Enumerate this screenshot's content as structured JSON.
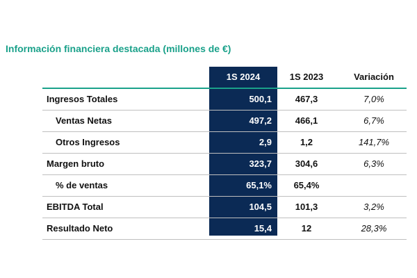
{
  "title": "Información financiera destacada (millones de €)",
  "table": {
    "headers": {
      "col_2024": "1S 2024",
      "col_2023": "1S 2023",
      "col_var": "Variación"
    },
    "rows": [
      {
        "label": "Ingresos Totales",
        "v2024": "500,1",
        "v2023": "467,3",
        "var": "7,0%"
      },
      {
        "label": "Ventas Netas",
        "v2024": "497,2",
        "v2023": "466,1",
        "var": "6,7%"
      },
      {
        "label": "Otros Ingresos",
        "v2024": "2,9",
        "v2023": "1,2",
        "var": "141,7%"
      },
      {
        "label": "Margen bruto",
        "v2024": "323,7",
        "v2023": "304,6",
        "var": "6,3%"
      },
      {
        "label": "% de ventas",
        "v2024": "65,1%",
        "v2023": "65,4%",
        "var": ""
      },
      {
        "label": "EBITDA Total",
        "v2024": "104,5",
        "v2023": "101,3",
        "var": "3,2%"
      },
      {
        "label": "Resultado Neto",
        "v2024": "15,4",
        "v2023": "12",
        "var": "28,3%"
      }
    ]
  },
  "colors": {
    "accent": "#1aa18a",
    "highlight_column": "#0b2a55",
    "row_divider": "#bfbfbf"
  }
}
